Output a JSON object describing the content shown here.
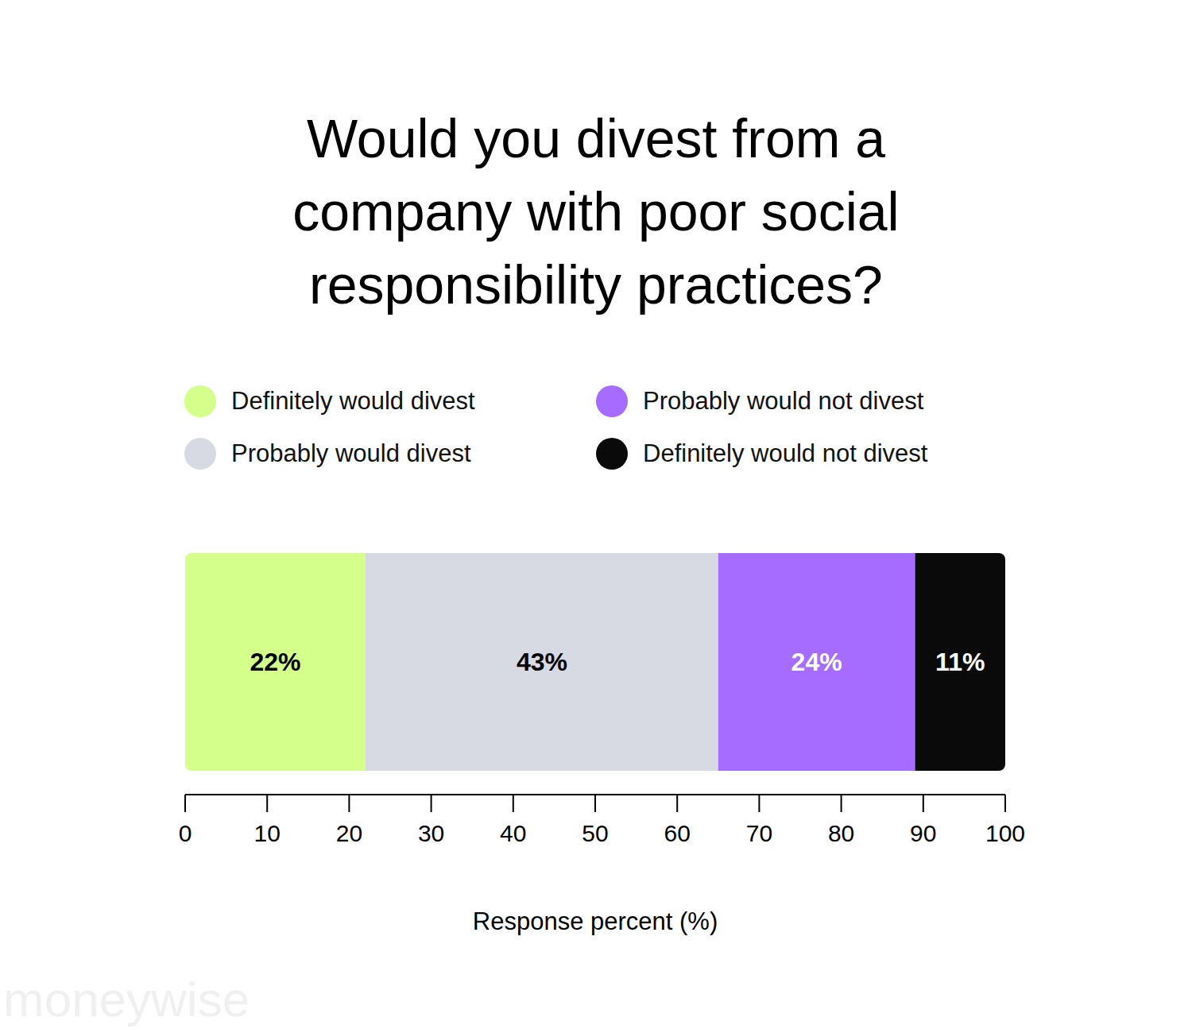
{
  "chart_data": {
    "type": "bar",
    "title": "Would you divest from a company with poor social responsibility practices?",
    "orientation": "horizontal",
    "stacked": true,
    "data_labels": true,
    "legend": "top",
    "categories": [
      null
    ],
    "x_label": "Response percent (%)",
    "xlim": [
      0,
      100
    ],
    "xticks": [
      0,
      10,
      20,
      30,
      40,
      50,
      60,
      70,
      80,
      90,
      100
    ],
    "series": [
      {
        "name": "Definitely would divest",
        "color": "#d4ff8a",
        "values": [
          22
        ],
        "value_labels": [
          "22%"
        ]
      },
      {
        "name": "Probably would divest",
        "color": "#d7dae3",
        "values": [
          43
        ],
        "value_labels": [
          "43%"
        ]
      },
      {
        "name": "Probably would not divest",
        "color": "#a66bff",
        "values": [
          24
        ],
        "value_labels": [
          "24%"
        ]
      },
      {
        "name": "Definitely would not divest",
        "color": "#0a0a0a",
        "values": [
          11
        ],
        "value_labels": [
          "11%"
        ]
      }
    ],
    "annotations": [
      "moneywise"
    ]
  }
}
